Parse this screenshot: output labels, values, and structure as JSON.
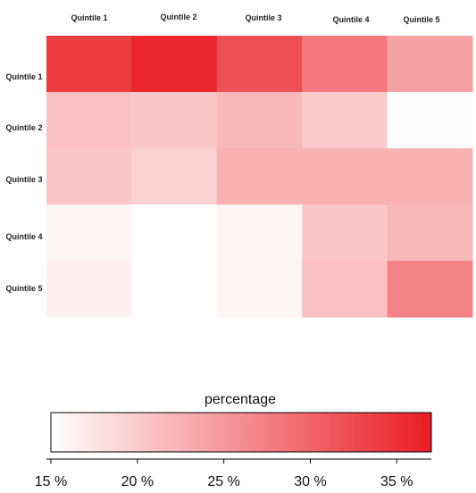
{
  "chart_data": {
    "type": "heatmap",
    "columns": [
      "Quintile 1",
      "Quintile 2",
      "Quintile 3",
      "Quintile 4",
      "Quintile 5"
    ],
    "rows": [
      "Quintile 1",
      "Quintile 2",
      "Quintile 3",
      "Quintile 4",
      "Quintile 5"
    ],
    "values": [
      [
        34.0,
        36.0,
        32.0,
        28.0,
        24.0
      ],
      [
        21.0,
        20.5,
        22.0,
        20.0,
        15.2
      ],
      [
        20.5,
        19.5,
        22.5,
        22.5,
        22.5
      ],
      [
        16.0,
        15.0,
        16.0,
        20.5,
        22.0
      ],
      [
        16.5,
        15.0,
        16.0,
        21.0,
        27.0
      ]
    ],
    "legend": {
      "title": "percentage",
      "min": 15,
      "max": 37,
      "ticks": [
        15,
        20,
        25,
        30,
        35
      ],
      "tick_labels": [
        "15 %",
        "20 %",
        "25 %",
        "30 %",
        "35 %"
      ],
      "color_low": "#ffffff",
      "color_high": "#ea1c24"
    }
  }
}
